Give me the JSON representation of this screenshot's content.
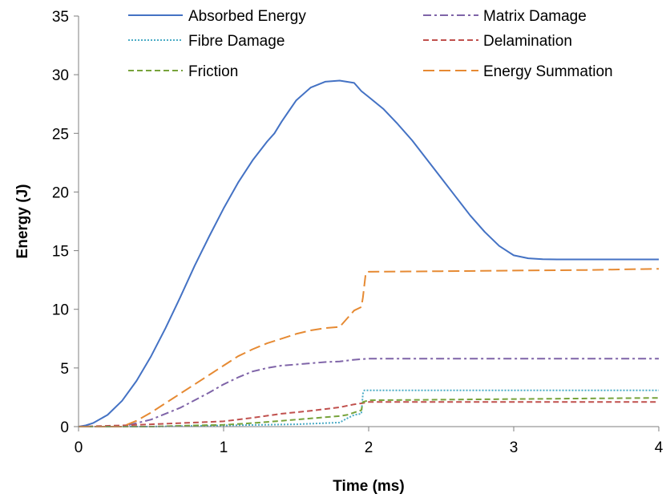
{
  "chart_data": {
    "type": "line",
    "title": "",
    "xlabel": "Time (ms)",
    "ylabel": "Energy (J)",
    "xlim": [
      0,
      4
    ],
    "ylim": [
      0,
      35
    ],
    "xticks": [
      0,
      1,
      2,
      3,
      4
    ],
    "yticks": [
      0,
      5,
      10,
      15,
      20,
      25,
      30,
      35
    ],
    "grid": false,
    "legend": "top",
    "series": [
      {
        "name": "Absorbed Energy",
        "color": "#4472C4",
        "style": "solid",
        "x": [
          0,
          0.05,
          0.1,
          0.2,
          0.3,
          0.4,
          0.5,
          0.6,
          0.7,
          0.8,
          0.9,
          1.0,
          1.1,
          1.2,
          1.3,
          1.35,
          1.4,
          1.45,
          1.5,
          1.6,
          1.7,
          1.8,
          1.9,
          1.95,
          2.0,
          2.1,
          2.2,
          2.3,
          2.4,
          2.5,
          2.6,
          2.7,
          2.8,
          2.9,
          3.0,
          3.1,
          3.2,
          3.3,
          3.4,
          3.5,
          3.6,
          3.7,
          3.8,
          3.9,
          4.0
        ],
        "y": [
          0,
          0.1,
          0.3,
          1.0,
          2.2,
          3.9,
          6.0,
          8.4,
          11.0,
          13.7,
          16.2,
          18.6,
          20.8,
          22.7,
          24.3,
          25.0,
          26.0,
          26.9,
          27.8,
          28.9,
          29.4,
          29.5,
          29.3,
          28.6,
          28.1,
          27.1,
          25.8,
          24.4,
          22.8,
          21.2,
          19.6,
          18.0,
          16.6,
          15.4,
          14.6,
          14.35,
          14.27,
          14.25,
          14.25,
          14.25,
          14.25,
          14.25,
          14.25,
          14.25,
          14.25
        ]
      },
      {
        "name": "Matrix Damage",
        "color": "#7F64A8",
        "style": "dashdot",
        "x": [
          0,
          0.3,
          0.5,
          0.7,
          0.9,
          1.0,
          1.1,
          1.2,
          1.3,
          1.4,
          1.5,
          1.6,
          1.7,
          1.8,
          1.9,
          2.0,
          2.2,
          2.5,
          3.0,
          3.5,
          4.0
        ],
        "y": [
          0,
          0.0,
          0.6,
          1.6,
          2.9,
          3.6,
          4.2,
          4.7,
          5.0,
          5.2,
          5.3,
          5.4,
          5.5,
          5.55,
          5.7,
          5.8,
          5.8,
          5.8,
          5.8,
          5.8,
          5.8
        ]
      },
      {
        "name": "Fibre Damage",
        "color": "#4BACC6",
        "style": "dotted",
        "x": [
          0,
          0.5,
          1.0,
          1.5,
          1.8,
          1.85,
          1.9,
          1.95,
          1.96,
          1.97,
          2.0,
          2.5,
          3.0,
          3.5,
          4.0
        ],
        "y": [
          0,
          0.0,
          0.1,
          0.2,
          0.35,
          0.7,
          1.0,
          1.1,
          2.8,
          3.1,
          3.1,
          3.1,
          3.1,
          3.1,
          3.1
        ]
      },
      {
        "name": "Delamination",
        "color": "#C0504D",
        "style": "dashed",
        "x": [
          0,
          0.3,
          0.5,
          0.8,
          1.0,
          1.2,
          1.4,
          1.6,
          1.7,
          1.8,
          1.9,
          1.96,
          2.0,
          2.5,
          3.0,
          3.5,
          4.0
        ],
        "y": [
          0,
          0.1,
          0.2,
          0.35,
          0.45,
          0.75,
          1.1,
          1.35,
          1.5,
          1.65,
          1.9,
          2.0,
          2.1,
          2.1,
          2.1,
          2.1,
          2.1
        ]
      },
      {
        "name": "Friction",
        "color": "#77A33B",
        "style": "dashed",
        "x": [
          0,
          0.5,
          0.8,
          1.0,
          1.2,
          1.4,
          1.6,
          1.8,
          1.85,
          1.9,
          1.95,
          1.96,
          2.0,
          2.5,
          3.0,
          3.5,
          4.0
        ],
        "y": [
          0,
          0.0,
          0.1,
          0.15,
          0.3,
          0.5,
          0.7,
          0.9,
          1.0,
          1.2,
          1.4,
          2.1,
          2.25,
          2.3,
          2.35,
          2.4,
          2.45
        ]
      },
      {
        "name": "Energy Summation",
        "color": "#E68A33",
        "style": "longdash",
        "x": [
          0,
          0.3,
          0.4,
          0.5,
          0.6,
          0.7,
          0.8,
          0.9,
          1.0,
          1.1,
          1.2,
          1.3,
          1.4,
          1.5,
          1.6,
          1.7,
          1.8,
          1.85,
          1.9,
          1.95,
          1.96,
          1.98,
          2.0,
          2.5,
          3.0,
          3.5,
          4.0
        ],
        "y": [
          0,
          0.0,
          0.5,
          1.2,
          2.0,
          2.8,
          3.6,
          4.4,
          5.2,
          6.0,
          6.6,
          7.1,
          7.5,
          7.9,
          8.2,
          8.4,
          8.5,
          9.2,
          9.9,
          10.2,
          11.0,
          13.1,
          13.2,
          13.25,
          13.3,
          13.35,
          13.45
        ]
      }
    ]
  }
}
